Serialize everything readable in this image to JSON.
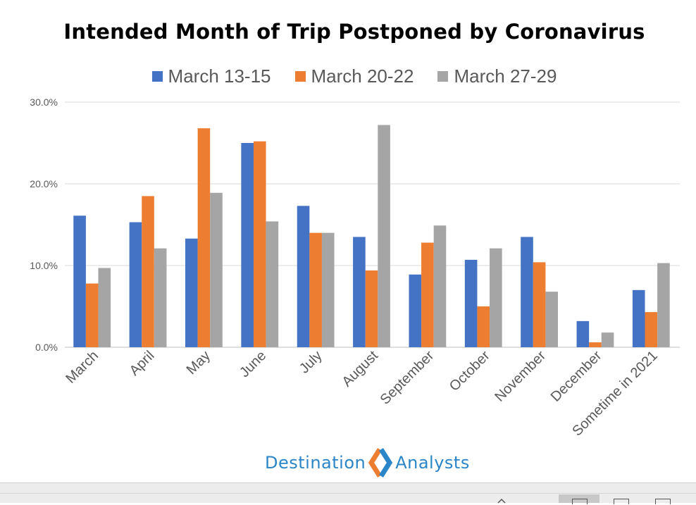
{
  "chart_data": {
    "type": "bar",
    "title": "Intended Month of Trip Postponed by Coronavirus",
    "xlabel": "",
    "ylabel": "",
    "ylim": [
      0,
      30
    ],
    "yticks": [
      "0.0%",
      "10.0%",
      "20.0%",
      "30.0%"
    ],
    "ytick_values": [
      0,
      10,
      20,
      30
    ],
    "grid": true,
    "legend_position": "top",
    "categories": [
      "March",
      "April",
      "May",
      "June",
      "July",
      "August",
      "September",
      "October",
      "November",
      "December",
      "Sometime in 2021"
    ],
    "series": [
      {
        "name": "March 13-15",
        "color": "#4472c4",
        "values": [
          16.1,
          15.3,
          13.3,
          25.0,
          17.3,
          13.5,
          8.9,
          10.7,
          13.5,
          3.2,
          7.0
        ]
      },
      {
        "name": "March 20-22",
        "color": "#ed7d31",
        "values": [
          7.8,
          18.5,
          26.8,
          25.2,
          14.0,
          9.4,
          12.8,
          5.0,
          10.4,
          0.6,
          4.3
        ]
      },
      {
        "name": "March 27-29",
        "color": "#a5a5a5",
        "values": [
          9.7,
          12.1,
          18.9,
          15.4,
          14.0,
          27.2,
          14.9,
          12.1,
          6.8,
          1.8,
          10.3
        ]
      }
    ]
  },
  "logo": {
    "left_text": "Destination",
    "right_text": "Analysts",
    "icon": "diamond-arrows-icon",
    "colors": {
      "blue": "#2a86c8",
      "orange": "#ed7d31"
    }
  }
}
